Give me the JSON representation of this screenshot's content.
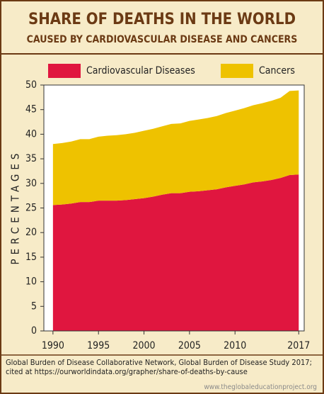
{
  "chart_data": {
    "type": "stacked_area",
    "title": "SHARE OF DEATHS IN THE WORLD",
    "subtitle": "CAUSED BY CARDIOVASCULAR DISEASE AND CANCERS",
    "y_label": "PERCENTAGES",
    "x": [
      1990,
      1991,
      1992,
      1993,
      1994,
      1995,
      1996,
      1997,
      1998,
      1999,
      2000,
      2001,
      2002,
      2003,
      2004,
      2005,
      2006,
      2007,
      2008,
      2009,
      2010,
      2011,
      2012,
      2013,
      2014,
      2015,
      2016,
      2017
    ],
    "series": [
      {
        "name": "Cardiovascular Diseases",
        "color": "#e0163f",
        "values": [
          25.6,
          25.7,
          25.9,
          26.2,
          26.2,
          26.5,
          26.5,
          26.5,
          26.6,
          26.8,
          27.0,
          27.3,
          27.7,
          28.0,
          28.0,
          28.3,
          28.4,
          28.6,
          28.8,
          29.2,
          29.5,
          29.8,
          30.2,
          30.4,
          30.7,
          31.1,
          31.7,
          31.8
        ]
      },
      {
        "name": "Cancers",
        "color": "#eec200",
        "values": [
          12.4,
          12.5,
          12.6,
          12.8,
          12.8,
          13.0,
          13.2,
          13.3,
          13.4,
          13.5,
          13.7,
          13.8,
          13.9,
          14.1,
          14.2,
          14.4,
          14.6,
          14.7,
          14.9,
          15.1,
          15.3,
          15.5,
          15.7,
          15.9,
          16.1,
          16.3,
          17.1,
          17.1
        ]
      }
    ],
    "xlim": [
      1989,
      2017.6
    ],
    "xticks": [
      1990,
      1995,
      2000,
      2005,
      2010,
      2017
    ],
    "ylim": [
      0,
      50
    ],
    "yticks": [
      0,
      5,
      10,
      15,
      20,
      25,
      30,
      35,
      40,
      45,
      50
    ],
    "source": [
      "Global Burden of Disease Collaborative Network, Global Burden of Disease Study 2017;",
      "cited at https://ourworldindata.org/grapher/share-of-deaths-by-cause"
    ],
    "website": "www.theglobaleducationproject.org"
  }
}
